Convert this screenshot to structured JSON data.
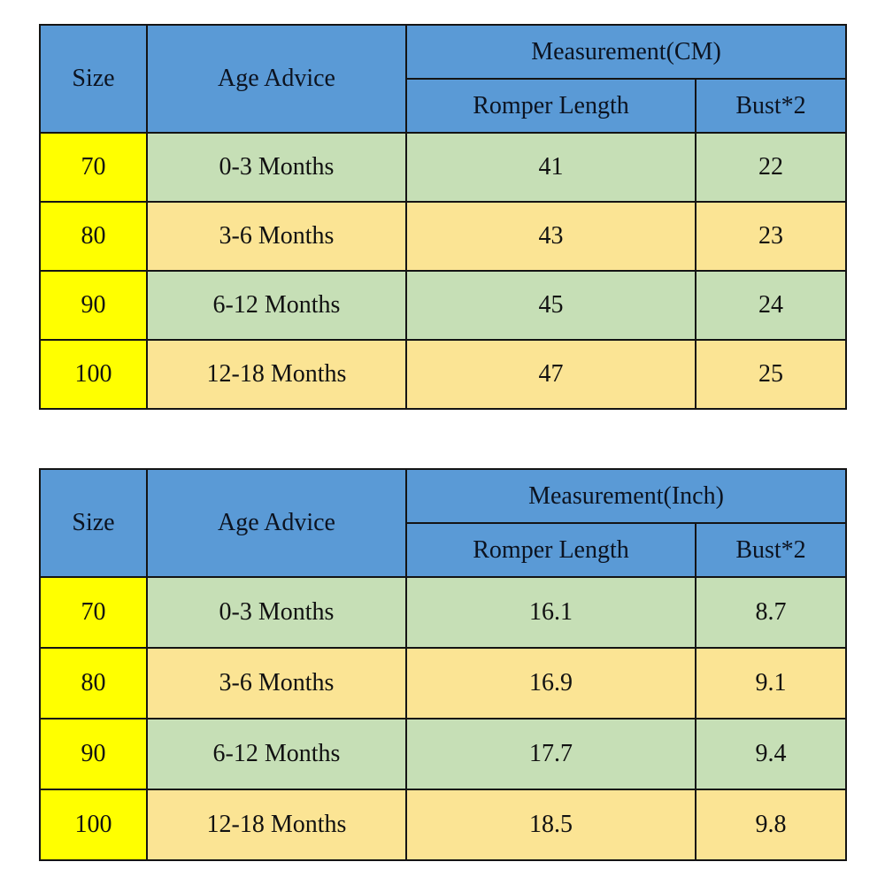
{
  "colors": {
    "header_blue": "#5a9ad6",
    "size_column_yellow": "#ffff00",
    "row_green": "#c6dfb6",
    "row_gold": "#fbe494",
    "border": "#141414"
  },
  "chart_data": [
    {
      "type": "table",
      "title": "Measurement(CM)",
      "header": {
        "size": "Size",
        "age": "Age Advice",
        "group": "Measurement(CM)",
        "romper": "Romper Length",
        "bust": "Bust*2"
      },
      "rows": [
        {
          "size": "70",
          "age": "0-3 Months",
          "romper": "41",
          "bust": "22"
        },
        {
          "size": "80",
          "age": "3-6 Months",
          "romper": "43",
          "bust": "23"
        },
        {
          "size": "90",
          "age": "6-12 Months",
          "romper": "45",
          "bust": "24"
        },
        {
          "size": "100",
          "age": "12-18 Months",
          "romper": "47",
          "bust": "25"
        }
      ]
    },
    {
      "type": "table",
      "title": "Measurement(Inch)",
      "header": {
        "size": "Size",
        "age": "Age Advice",
        "group": "Measurement(Inch)",
        "romper": "Romper Length",
        "bust": "Bust*2"
      },
      "rows": [
        {
          "size": "70",
          "age": "0-3 Months",
          "romper": "16.1",
          "bust": "8.7"
        },
        {
          "size": "80",
          "age": "3-6 Months",
          "romper": "16.9",
          "bust": "9.1"
        },
        {
          "size": "90",
          "age": "6-12 Months",
          "romper": "17.7",
          "bust": "9.4"
        },
        {
          "size": "100",
          "age": "12-18 Months",
          "romper": "18.5",
          "bust": "9.8"
        }
      ]
    }
  ]
}
